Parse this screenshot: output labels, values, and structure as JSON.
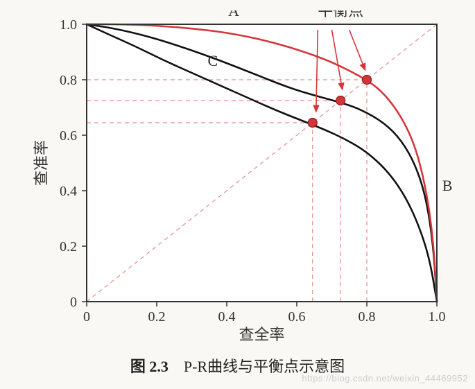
{
  "chart": {
    "type": "line",
    "background_color": "#faf8f5",
    "plot_bg": "#ffffff",
    "axis_color": "#333333",
    "axis_width": 2,
    "xlim": [
      0,
      1.0
    ],
    "ylim": [
      0,
      1.0
    ],
    "xticks": [
      0,
      0.2,
      0.4,
      0.6,
      0.8,
      1.0
    ],
    "yticks": [
      0,
      0.2,
      0.4,
      0.6,
      0.8,
      1.0
    ],
    "xtick_labels": [
      "0",
      "0.2",
      "0.4",
      "0.6",
      "0.8",
      "1.0"
    ],
    "ytick_labels": [
      "0",
      "0.2",
      "0.4",
      "0.6",
      "0.8",
      "1.0"
    ],
    "tick_fontsize": 20,
    "xlabel": "查全率",
    "ylabel": "查准率",
    "label_fontsize": 22,
    "diagonal": {
      "color": "#e98b8b",
      "dash": "6,5",
      "width": 1.2
    },
    "guide": {
      "color": "#e98b8b",
      "dash": "6,5",
      "width": 1.2
    },
    "series": {
      "A": {
        "label": "A",
        "color": "#d4353a",
        "width": 2.6,
        "points": [
          [
            0.0,
            1.0
          ],
          [
            0.1,
            1.0
          ],
          [
            0.2,
            0.995
          ],
          [
            0.3,
            0.985
          ],
          [
            0.4,
            0.97
          ],
          [
            0.5,
            0.945
          ],
          [
            0.6,
            0.91
          ],
          [
            0.7,
            0.865
          ],
          [
            0.8,
            0.8
          ],
          [
            0.85,
            0.75
          ],
          [
            0.9,
            0.665
          ],
          [
            0.94,
            0.555
          ],
          [
            0.97,
            0.4
          ],
          [
            0.99,
            0.22
          ],
          [
            1.0,
            0.0
          ]
        ],
        "label_pos": [
          0.42,
          1.03
        ]
      },
      "B": {
        "label": "B",
        "color": "#111111",
        "width": 2.6,
        "points": [
          [
            0.0,
            1.0
          ],
          [
            0.08,
            0.985
          ],
          [
            0.18,
            0.955
          ],
          [
            0.28,
            0.915
          ],
          [
            0.38,
            0.87
          ],
          [
            0.48,
            0.82
          ],
          [
            0.58,
            0.77
          ],
          [
            0.66,
            0.74
          ],
          [
            0.72,
            0.72
          ],
          [
            0.78,
            0.695
          ],
          [
            0.85,
            0.645
          ],
          [
            0.9,
            0.58
          ],
          [
            0.94,
            0.49
          ],
          [
            0.97,
            0.37
          ],
          [
            0.99,
            0.2
          ],
          [
            1.0,
            0.0
          ]
        ],
        "label_pos": [
          1.03,
          0.4
        ]
      },
      "C": {
        "label": "C",
        "color": "#111111",
        "width": 2.6,
        "points": [
          [
            0.0,
            1.0
          ],
          [
            0.06,
            0.965
          ],
          [
            0.14,
            0.92
          ],
          [
            0.22,
            0.87
          ],
          [
            0.3,
            0.825
          ],
          [
            0.38,
            0.78
          ],
          [
            0.46,
            0.735
          ],
          [
            0.54,
            0.69
          ],
          [
            0.62,
            0.65
          ],
          [
            0.68,
            0.62
          ],
          [
            0.74,
            0.585
          ],
          [
            0.8,
            0.54
          ],
          [
            0.86,
            0.47
          ],
          [
            0.91,
            0.38
          ],
          [
            0.95,
            0.27
          ],
          [
            0.98,
            0.15
          ],
          [
            1.0,
            0.0
          ]
        ],
        "label_pos": [
          0.36,
          0.85
        ]
      }
    },
    "balance_points": {
      "label": "平衡点",
      "label_pos": [
        0.66,
        1.03
      ],
      "label_fontsize": 22,
      "marker_color": "#d4353a",
      "marker_stroke": "#8b1f22",
      "marker_radius": 6.5,
      "points": [
        {
          "x": 0.645,
          "y": 0.645
        },
        {
          "x": 0.725,
          "y": 0.725
        },
        {
          "x": 0.8,
          "y": 0.8
        }
      ],
      "arrow_color": "#d4353a",
      "arrows": [
        {
          "from": [
            0.66,
            0.98
          ],
          "to": [
            0.655,
            0.685
          ]
        },
        {
          "from": [
            0.7,
            0.98
          ],
          "to": [
            0.73,
            0.765
          ]
        },
        {
          "from": [
            0.75,
            0.98
          ],
          "to": [
            0.795,
            0.835
          ]
        }
      ]
    }
  },
  "caption": {
    "bold": "图 2.3",
    "text": "P-R曲线与平衡点示意图"
  },
  "watermark": "https://blog.csdn.net/weixin_44469952"
}
